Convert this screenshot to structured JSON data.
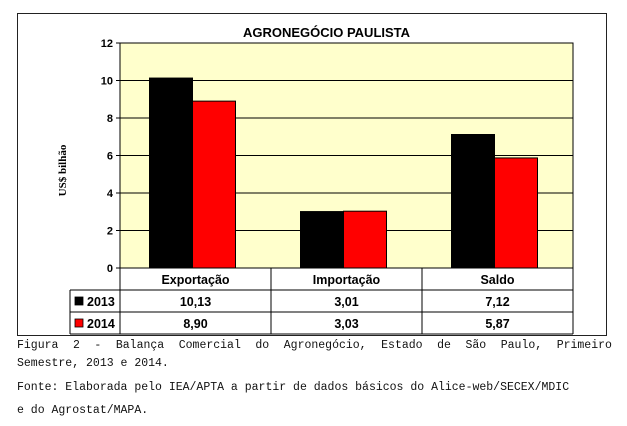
{
  "chart_data": {
    "type": "bar",
    "title": "AGRONEGÓCIO PAULISTA",
    "ylabel": "US$ bilhão",
    "xlabel": "",
    "ylim": [
      0,
      12
    ],
    "yticks": [
      "0",
      "2",
      "4",
      "6",
      "8",
      "10",
      "12"
    ],
    "grid": true,
    "categories": [
      "Exportação",
      "Importação",
      "Saldo"
    ],
    "series": [
      {
        "name": "2013",
        "color": "#000000",
        "values": [
          10.13,
          3.01,
          7.12
        ],
        "labels": [
          "10,13",
          "3,01",
          "7,12"
        ]
      },
      {
        "name": "2014",
        "color": "#ff0000",
        "values": [
          8.9,
          3.03,
          5.87
        ],
        "labels": [
          "8,90",
          "3,03",
          "5,87"
        ]
      }
    ],
    "data_table": true,
    "plot_background": "#ffffcc"
  },
  "caption": {
    "line1_words": [
      "Figura",
      "2",
      "-",
      "Balança",
      "Comercial",
      "do",
      "Agronegócio,",
      "Estado",
      "de",
      "São",
      "Paulo,",
      "Primeiro"
    ],
    "line2": "Semestre, 2013 e 2014.",
    "line3": "Fonte: Elaborada pelo IEA/APTA a partir de dados básicos do Alice-web/SECEX/MDIC",
    "line4": "e do Agrostat/MAPA."
  }
}
